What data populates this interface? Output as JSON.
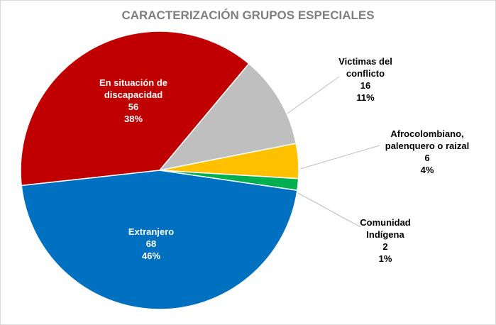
{
  "chart_data": {
    "type": "pie",
    "title": "CARACTERIZACIÓN GRUPOS ESPECIALES",
    "categories": [
      "En situación de discapacidad",
      "Victimas del conflicto",
      "Afrocolombiano, palenquero o raizal",
      "Comunidad Indígena",
      "Extranjero"
    ],
    "values": [
      56,
      16,
      6,
      2,
      68
    ],
    "percent_labels": [
      "38%",
      "11%",
      "4%",
      "1%",
      "46%"
    ],
    "colors": [
      "#c00000",
      "#bfbfbf",
      "#ffc000",
      "#00b050",
      "#0070c0"
    ]
  }
}
